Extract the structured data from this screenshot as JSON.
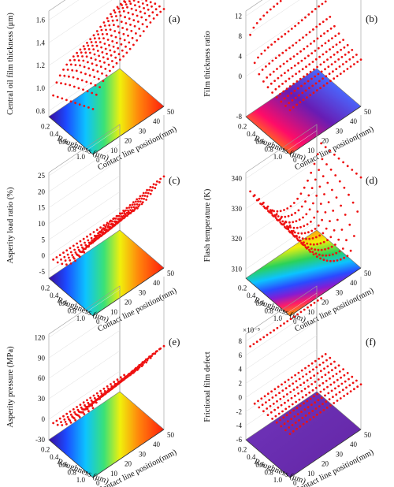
{
  "chart_data": [
    {
      "type": "scatter",
      "panel": "(a)",
      "zlabel": "Central oil film thickness (μm)",
      "xlabel": "Roughness (μm)",
      "ylabel": "Contact line position(mm)",
      "x_ticks": [
        "0.2",
        "0.4",
        "0.6",
        "0.8",
        "1.0"
      ],
      "y_ticks": [
        "0",
        "10",
        "20",
        "30",
        "40",
        "50"
      ],
      "z_ticks": [
        "0.8",
        "1.0",
        "1.2",
        "1.4",
        "1.6"
      ],
      "zlim": [
        0.75,
        1.68
      ],
      "roughness": [
        0.1,
        0.2,
        0.3,
        0.4,
        0.5,
        0.6,
        0.7,
        0.8,
        0.9,
        1.0
      ],
      "series": [
        {
          "roughness": 0.1,
          "z_start": 0.97,
          "z_end": 1.37
        },
        {
          "roughness": 0.2,
          "z_start": 0.99,
          "z_end": 1.42
        },
        {
          "roughness": 0.3,
          "z_start": 1.01,
          "z_end": 1.46
        },
        {
          "roughness": 0.4,
          "z_start": 1.03,
          "z_end": 1.5
        },
        {
          "roughness": 0.5,
          "z_start": 1.05,
          "z_end": 1.52
        },
        {
          "roughness": 0.6,
          "z_start": 1.07,
          "z_end": 1.54
        },
        {
          "roughness": 0.7,
          "z_start": 1.09,
          "z_end": 1.56
        },
        {
          "roughness": 0.8,
          "z_start": 1.11,
          "z_end": 1.58
        },
        {
          "roughness": 0.9,
          "z_start": 1.13,
          "z_end": 1.59
        },
        {
          "roughness": 1.0,
          "z_start": 1.15,
          "z_end": 1.6
        }
      ],
      "contour": "jet"
    },
    {
      "type": "scatter",
      "panel": "(b)",
      "zlabel": "Film thickness ratio",
      "xlabel": "Roughness (μm)",
      "ylabel": "Contact line position(mm)",
      "x_ticks": [
        "0.2",
        "0.4",
        "0.6",
        "0.8",
        "1.0"
      ],
      "y_ticks": [
        "0",
        "10",
        "20",
        "30",
        "40",
        "50"
      ],
      "z_ticks": [
        "-8",
        "0",
        "4",
        "8",
        "12"
      ],
      "zlim": [
        -8,
        13
      ],
      "roughness": [
        0.1,
        0.2,
        0.3,
        0.4,
        0.5,
        0.6,
        0.7,
        0.8,
        0.9,
        1.0
      ],
      "series": [
        {
          "roughness": 0.1,
          "z_start": 9.0,
          "z_end": 13.2
        },
        {
          "roughness": 0.2,
          "z_start": 4.2,
          "z_end": 6.8
        },
        {
          "roughness": 0.3,
          "z_start": 2.7,
          "z_end": 4.5
        },
        {
          "roughness": 0.4,
          "z_start": 2.0,
          "z_end": 3.4
        },
        {
          "roughness": 0.5,
          "z_start": 1.6,
          "z_end": 2.7
        },
        {
          "roughness": 0.6,
          "z_start": 1.3,
          "z_end": 2.2
        },
        {
          "roughness": 0.7,
          "z_start": 1.1,
          "z_end": 1.9
        },
        {
          "roughness": 0.8,
          "z_start": 1.0,
          "z_end": 1.7
        },
        {
          "roughness": 0.9,
          "z_start": 0.9,
          "z_end": 1.5
        },
        {
          "roughness": 1.0,
          "z_start": 0.8,
          "z_end": 1.3
        }
      ],
      "contour": "jet-reversed"
    },
    {
      "type": "scatter",
      "panel": "(c)",
      "zlabel": "Asperity load ratio (%)",
      "xlabel": "Roughness (μm)",
      "ylabel": "Contact line position(mm)",
      "x_ticks": [
        "0.2",
        "0.4",
        "0.6",
        "0.8",
        "1.0"
      ],
      "y_ticks": [
        "0",
        "10",
        "20",
        "30",
        "40",
        "50"
      ],
      "z_ticks": [
        "-5",
        "0",
        "5",
        "10",
        "15",
        "20",
        "25"
      ],
      "zlim": [
        -7,
        26
      ],
      "roughness": [
        0.1,
        0.2,
        0.3,
        0.4,
        0.5,
        0.6,
        0.7,
        0.8,
        0.9,
        1.0
      ],
      "series": [
        {
          "roughness": 0.1,
          "z_start": 0.0,
          "z_end": 0.0
        },
        {
          "roughness": 0.2,
          "z_start": 0.3,
          "z_end": 1.0
        },
        {
          "roughness": 0.3,
          "z_start": 1.0,
          "z_end": 2.5
        },
        {
          "roughness": 0.4,
          "z_start": 2.0,
          "z_end": 4.5
        },
        {
          "roughness": 0.5,
          "z_start": 3.5,
          "z_end": 7.0
        },
        {
          "roughness": 0.6,
          "z_start": 5.5,
          "z_end": 9.5
        },
        {
          "roughness": 0.7,
          "z_start": 8.0,
          "z_end": 12.5
        },
        {
          "roughness": 0.8,
          "z_start": 10.5,
          "z_end": 15.5
        },
        {
          "roughness": 0.9,
          "z_start": 13.5,
          "z_end": 18.5
        },
        {
          "roughness": 1.0,
          "z_start": 16.0,
          "z_end": 21.5
        }
      ],
      "contour": "jet"
    },
    {
      "type": "scatter",
      "panel": "(d)",
      "zlabel": "Flash temperature (K)",
      "xlabel": "Roughness (μm)",
      "ylabel": "Contact line position(mm)",
      "x_ticks": [
        "0.2",
        "0.4",
        "0.6",
        "0.8",
        "1.0"
      ],
      "y_ticks": [
        "0",
        "10",
        "20",
        "30",
        "40",
        "50"
      ],
      "z_ticks": [
        "310",
        "320",
        "330",
        "340"
      ],
      "zlim": [
        307,
        342
      ],
      "roughness": [
        0.1,
        0.2,
        0.3,
        0.4,
        0.5,
        0.6,
        0.7,
        0.8,
        0.9,
        1.0
      ],
      "series": [
        {
          "roughness": 0.1,
          "z_start": 337,
          "z_min": 323
        },
        {
          "roughness": 0.2,
          "z_start": 337,
          "z_min": 322
        },
        {
          "roughness": 0.3,
          "z_start": 337,
          "z_min": 321
        },
        {
          "roughness": 0.4,
          "z_start": 337,
          "z_min": 320
        },
        {
          "roughness": 0.5,
          "z_start": 337,
          "z_min": 319
        },
        {
          "roughness": 0.6,
          "z_start": 337,
          "z_min": 318
        },
        {
          "roughness": 0.7,
          "z_start": 337,
          "z_min": 317
        },
        {
          "roughness": 0.8,
          "z_start": 337,
          "z_min": 316
        },
        {
          "roughness": 0.9,
          "z_start": 337,
          "z_min": 315
        },
        {
          "roughness": 1.0,
          "z_start": 337,
          "z_min": 314
        }
      ],
      "contour": "rainbow-bands"
    },
    {
      "type": "scatter",
      "panel": "(e)",
      "zlabel": "Asperity pressure (MPa)",
      "xlabel": "Roughness (μm)",
      "ylabel": "Contact line position(mm)",
      "x_ticks": [
        "0.2",
        "0.4",
        "0.6",
        "0.8",
        "1.0"
      ],
      "y_ticks": [
        "0",
        "10",
        "20",
        "30",
        "40",
        "50"
      ],
      "z_ticks": [
        "-30",
        "0",
        "30",
        "60",
        "90",
        "120"
      ],
      "zlim": [
        -30,
        125
      ],
      "roughness": [
        0.1,
        0.2,
        0.3,
        0.4,
        0.5,
        0.6,
        0.7,
        0.8,
        0.9,
        1.0
      ],
      "series": [
        {
          "roughness": 0.1,
          "z_start": 0,
          "z_end": 0
        },
        {
          "roughness": 0.2,
          "z_start": 3,
          "z_end": 6
        },
        {
          "roughness": 0.3,
          "z_start": 8,
          "z_end": 14
        },
        {
          "roughness": 0.4,
          "z_start": 15,
          "z_end": 24
        },
        {
          "roughness": 0.5,
          "z_start": 23,
          "z_end": 35
        },
        {
          "roughness": 0.6,
          "z_start": 32,
          "z_end": 46
        },
        {
          "roughness": 0.7,
          "z_start": 42,
          "z_end": 58
        },
        {
          "roughness": 0.8,
          "z_start": 52,
          "z_end": 70
        },
        {
          "roughness": 0.9,
          "z_start": 62,
          "z_end": 82
        },
        {
          "roughness": 1.0,
          "z_start": 72,
          "z_end": 92
        }
      ],
      "contour": "jet"
    },
    {
      "type": "scatter",
      "panel": "(f)",
      "zlabel": "Frictional film defect",
      "z_multiplier": "×10⁻⁵",
      "xlabel": "Roughness (μm)",
      "ylabel": "Contact line position(mm)",
      "x_ticks": [
        "0.2",
        "0.4",
        "0.6",
        "0.8",
        "1.0"
      ],
      "y_ticks": [
        "0",
        "10",
        "20",
        "30",
        "40",
        "50"
      ],
      "z_ticks": [
        "-6",
        "-4",
        "-2",
        "0",
        "2",
        "4",
        "6",
        "8"
      ],
      "zlim": [
        -6,
        9
      ],
      "roughness": [
        0.1,
        0.2,
        0.3,
        0.4,
        0.5,
        0.6,
        0.7,
        0.8,
        0.9,
        1.0
      ],
      "series": [
        {
          "roughness": 0.1,
          "z_start": 7.8,
          "z_end": 7.8
        },
        {
          "roughness": 0.2,
          "z_start": 0.2,
          "z_end": 0.4
        },
        {
          "roughness": 0.3,
          "z_start": 0.2,
          "z_end": 0.4
        },
        {
          "roughness": 0.4,
          "z_start": 0.2,
          "z_end": 0.4
        },
        {
          "roughness": 0.5,
          "z_start": 0.2,
          "z_end": 0.4
        },
        {
          "roughness": 0.6,
          "z_start": 0.2,
          "z_end": 0.4
        },
        {
          "roughness": 0.7,
          "z_start": 0.2,
          "z_end": 0.4
        },
        {
          "roughness": 0.8,
          "z_start": 0.2,
          "z_end": 0.4
        },
        {
          "roughness": 0.9,
          "z_start": 0.2,
          "z_end": 0.4
        },
        {
          "roughness": 1.0,
          "z_start": 0.2,
          "z_end": 0.4
        }
      ],
      "contour": "flat-purple"
    }
  ]
}
